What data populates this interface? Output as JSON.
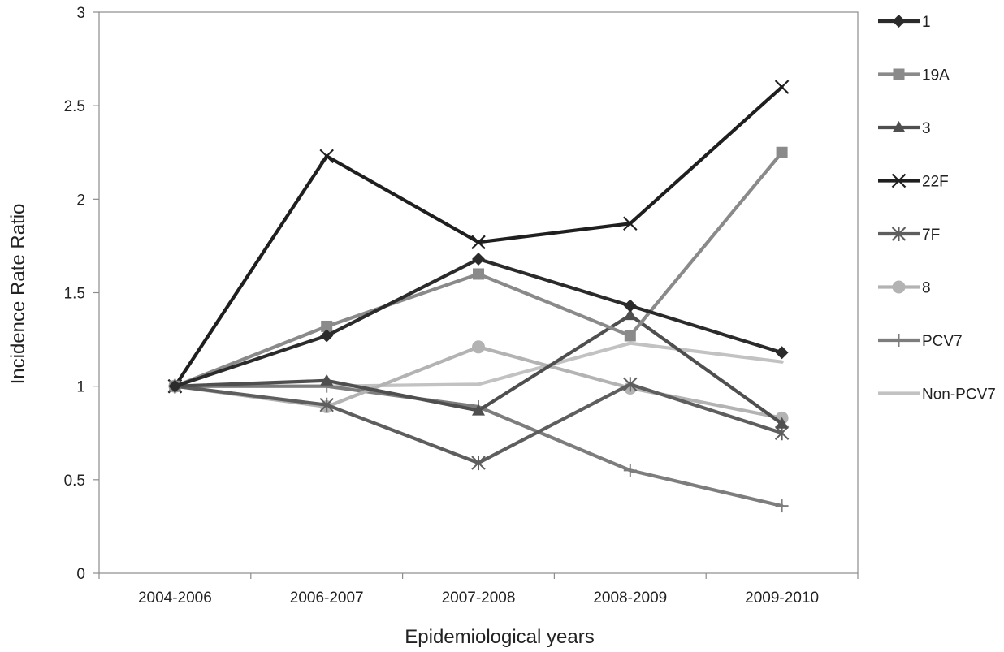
{
  "chart_data": {
    "type": "line",
    "title": "",
    "xlabel": "Epidemiological years",
    "ylabel": "Incidence Rate Ratio",
    "ylim": [
      0,
      3
    ],
    "ytick_step": 0.5,
    "grid": false,
    "legend_position": "right",
    "categories": [
      "2004-2006",
      "2006-2007",
      "2007-2008",
      "2008-2009",
      "2009-2010"
    ],
    "series": [
      {
        "name": "1",
        "values": [
          1.0,
          1.27,
          1.68,
          1.43,
          1.18
        ],
        "color": "#2b2b2b",
        "marker": "diamond"
      },
      {
        "name": "19A",
        "values": [
          1.0,
          1.32,
          1.6,
          1.27,
          2.25
        ],
        "color": "#8a8a8a",
        "marker": "square"
      },
      {
        "name": "3",
        "values": [
          1.0,
          1.03,
          0.87,
          1.38,
          0.8
        ],
        "color": "#4f4f4f",
        "marker": "triangle"
      },
      {
        "name": "22F",
        "values": [
          1.0,
          2.23,
          1.77,
          1.87,
          2.6
        ],
        "color": "#1f1f1f",
        "marker": "x"
      },
      {
        "name": "7F",
        "values": [
          1.0,
          0.9,
          0.59,
          1.01,
          0.75
        ],
        "color": "#5e5e5e",
        "marker": "star"
      },
      {
        "name": "8",
        "values": [
          1.0,
          0.89,
          1.21,
          0.99,
          0.83
        ],
        "color": "#b3b3b3",
        "marker": "circle"
      },
      {
        "name": "PCV7",
        "values": [
          1.0,
          1.0,
          0.89,
          0.55,
          0.36
        ],
        "color": "#7d7d7d",
        "marker": "plus"
      },
      {
        "name": "Non-PCV7",
        "values": [
          1.0,
          1.0,
          1.01,
          1.23,
          1.13
        ],
        "color": "#c2c2c2",
        "marker": "none"
      }
    ]
  }
}
